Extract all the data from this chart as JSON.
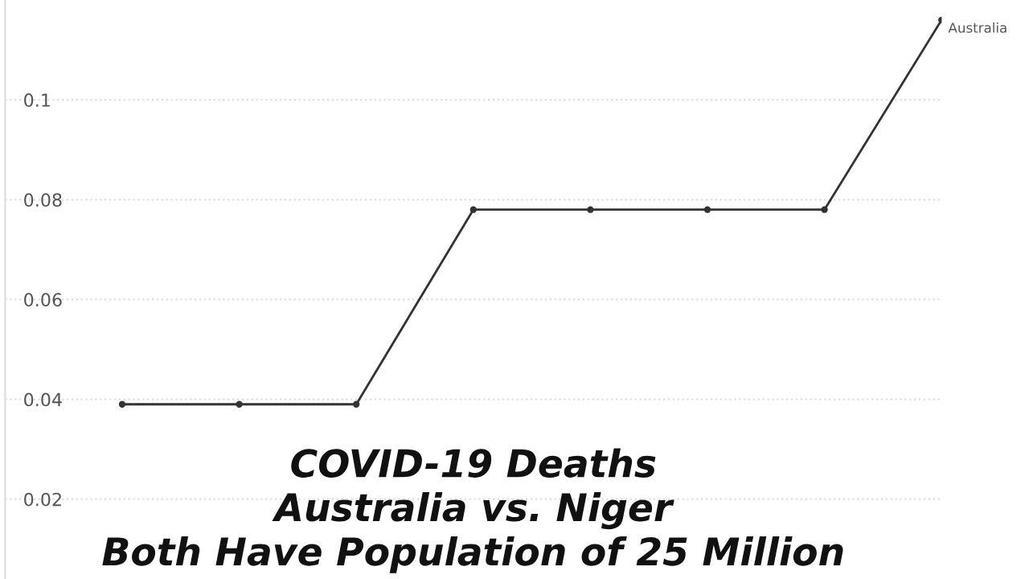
{
  "chart_data": {
    "type": "line",
    "title": "COVID-19 Deaths\nAustralia vs. Niger\nBoth Have Population of 25 Million",
    "categories": [
      null,
      null,
      null,
      null,
      null,
      null,
      null,
      null
    ],
    "series": [
      {
        "name": "Australia",
        "color": "#333333",
        "values": [
          0.039,
          0.039,
          0.039,
          0.078,
          0.078,
          0.078,
          0.078,
          0.116
        ]
      }
    ],
    "ylim": [
      0.004,
      0.12
    ],
    "yticks": [
      0.02,
      0.04,
      0.06,
      0.08,
      0.1
    ],
    "grid": "y",
    "marker": "circle",
    "line_style": "solid"
  }
}
